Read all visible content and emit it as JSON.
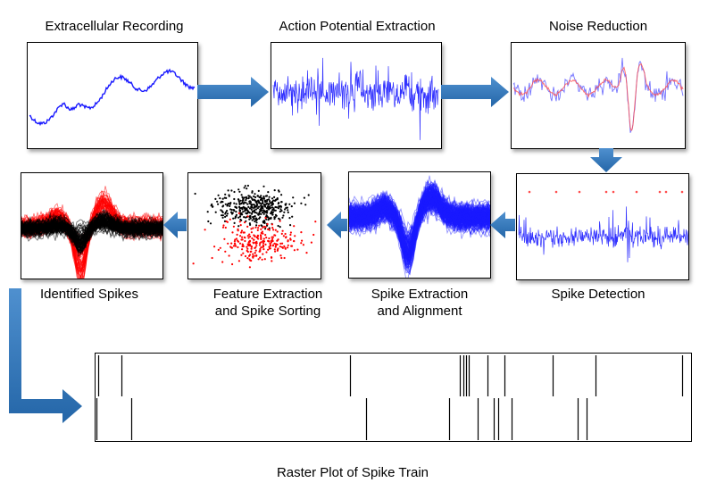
{
  "labels": {
    "recording": "Extracellular Recording",
    "extraction": "Action Potential Extraction",
    "noise": "Noise Reduction",
    "detection": "Spike Detection",
    "alignment_1": "Spike Extraction",
    "alignment_2": "and Alignment",
    "sorting_1": "Feature Extraction",
    "sorting_2": "and Spike Sorting",
    "identified": "Identified Spikes",
    "raster": "Raster Plot of Spike Train"
  },
  "colors": {
    "trace_blue": "#1a1aff",
    "noise_red": "#ff4d4d",
    "cluster_black": "#000000",
    "cluster_red": "#ff0000",
    "arrow": "#2e75b6"
  },
  "raster": {
    "row1_spike_positions": [
      0.005,
      0.043,
      0.428,
      0.612,
      0.618,
      0.622,
      0.626,
      0.658,
      0.686,
      0.767,
      0.839,
      0.985
    ],
    "row2_spike_positions": [
      0.001,
      0.06,
      0.455,
      0.593,
      0.641,
      0.669,
      0.676,
      0.699,
      0.809,
      0.825
    ]
  }
}
